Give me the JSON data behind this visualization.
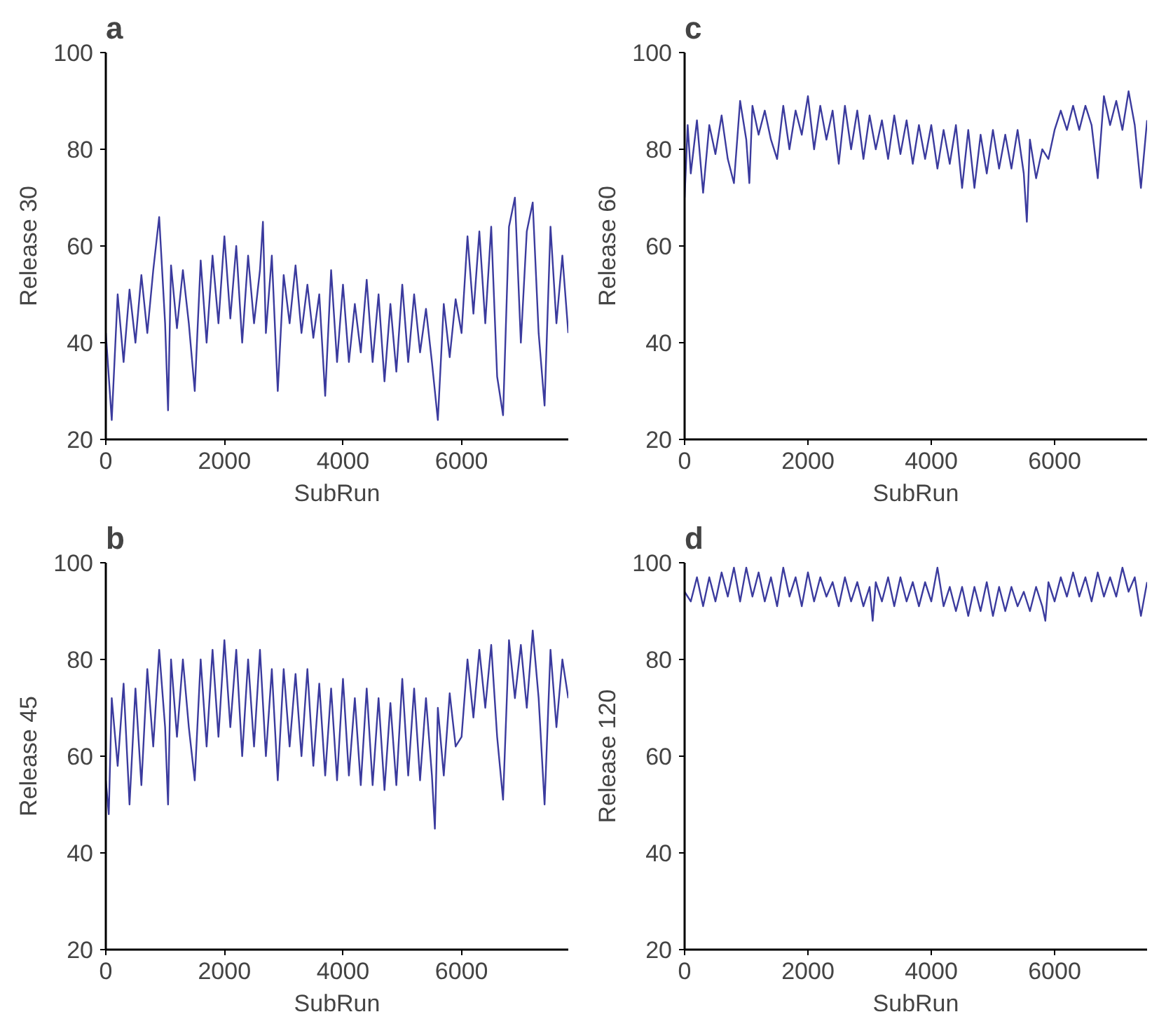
{
  "chart_data": [
    {
      "type": "line",
      "title": "a",
      "xlabel": "SubRun",
      "ylabel": "Release 30",
      "xlim": [
        0,
        7800
      ],
      "ylim": [
        20,
        100
      ],
      "xticks": [
        0,
        2000,
        4000,
        6000
      ],
      "yticks": [
        20,
        40,
        60,
        80,
        100
      ],
      "grid": false,
      "series": [
        {
          "color": "#3b3b9e",
          "x": [
            0,
            100,
            200,
            300,
            400,
            500,
            600,
            700,
            800,
            900,
            1000,
            1050,
            1100,
            1200,
            1300,
            1400,
            1500,
            1600,
            1700,
            1800,
            1900,
            2000,
            2100,
            2200,
            2300,
            2400,
            2500,
            2600,
            2650,
            2700,
            2800,
            2900,
            3000,
            3100,
            3200,
            3300,
            3400,
            3500,
            3600,
            3700,
            3800,
            3900,
            4000,
            4100,
            4200,
            4300,
            4400,
            4500,
            4600,
            4700,
            4800,
            4900,
            5000,
            5100,
            5200,
            5300,
            5400,
            5500,
            5600,
            5700,
            5800,
            5900,
            6000,
            6100,
            6200,
            6300,
            6400,
            6500,
            6600,
            6700,
            6800,
            6900,
            7000,
            7100,
            7200,
            7300,
            7400,
            7500,
            7600,
            7700,
            7800
          ],
          "values": [
            42,
            24,
            50,
            36,
            51,
            40,
            54,
            42,
            55,
            66,
            44,
            26,
            56,
            43,
            55,
            44,
            30,
            57,
            40,
            58,
            44,
            62,
            45,
            60,
            40,
            58,
            44,
            55,
            65,
            42,
            58,
            30,
            54,
            44,
            56,
            42,
            52,
            41,
            50,
            29,
            55,
            36,
            52,
            36,
            48,
            38,
            53,
            36,
            50,
            32,
            48,
            34,
            52,
            36,
            50,
            38,
            47,
            36,
            24,
            48,
            37,
            49,
            42,
            62,
            46,
            63,
            44,
            64,
            33,
            25,
            64,
            70,
            40,
            63,
            69,
            42,
            27,
            64,
            44,
            58,
            42
          ]
        }
      ]
    },
    {
      "type": "line",
      "title": "c",
      "xlabel": "SubRun",
      "ylabel": "Release 60",
      "xlim": [
        0,
        7500
      ],
      "ylim": [
        20,
        100
      ],
      "xticks": [
        0,
        2000,
        4000,
        6000
      ],
      "yticks": [
        20,
        40,
        60,
        80,
        100
      ],
      "grid": false,
      "series": [
        {
          "color": "#3b3b9e",
          "x": [
            0,
            50,
            100,
            200,
            300,
            400,
            500,
            600,
            700,
            800,
            900,
            1000,
            1050,
            1100,
            1200,
            1300,
            1400,
            1500,
            1600,
            1700,
            1800,
            1900,
            2000,
            2100,
            2200,
            2300,
            2400,
            2500,
            2600,
            2700,
            2800,
            2900,
            3000,
            3100,
            3200,
            3300,
            3400,
            3500,
            3600,
            3700,
            3800,
            3900,
            4000,
            4100,
            4200,
            4300,
            4400,
            4500,
            4600,
            4700,
            4800,
            4900,
            5000,
            5100,
            5200,
            5300,
            5400,
            5500,
            5550,
            5600,
            5700,
            5800,
            5900,
            6000,
            6100,
            6200,
            6300,
            6400,
            6500,
            6600,
            6700,
            6800,
            6900,
            7000,
            7100,
            7200,
            7300,
            7400,
            7500
          ],
          "values": [
            70,
            85,
            75,
            86,
            71,
            85,
            79,
            87,
            78,
            73,
            90,
            82,
            73,
            89,
            83,
            88,
            82,
            78,
            89,
            80,
            88,
            83,
            91,
            80,
            89,
            82,
            88,
            77,
            89,
            80,
            88,
            78,
            87,
            80,
            86,
            78,
            87,
            79,
            86,
            77,
            85,
            78,
            85,
            76,
            84,
            77,
            85,
            72,
            84,
            72,
            83,
            75,
            84,
            76,
            83,
            76,
            84,
            75,
            65,
            82,
            74,
            80,
            78,
            84,
            88,
            84,
            89,
            84,
            89,
            85,
            74,
            91,
            85,
            90,
            84,
            92,
            85,
            72,
            86
          ]
        }
      ]
    },
    {
      "type": "line",
      "title": "b",
      "xlabel": "SubRun",
      "ylabel": "Release 45",
      "xlim": [
        0,
        7800
      ],
      "ylim": [
        20,
        100
      ],
      "xticks": [
        0,
        2000,
        4000,
        6000
      ],
      "yticks": [
        20,
        40,
        60,
        80,
        100
      ],
      "grid": false,
      "series": [
        {
          "color": "#3b3b9e",
          "x": [
            0,
            50,
            100,
            200,
            300,
            400,
            500,
            600,
            700,
            800,
            900,
            1000,
            1050,
            1100,
            1200,
            1300,
            1400,
            1500,
            1600,
            1700,
            1800,
            1900,
            2000,
            2100,
            2200,
            2300,
            2400,
            2500,
            2600,
            2700,
            2800,
            2900,
            3000,
            3100,
            3200,
            3300,
            3400,
            3500,
            3600,
            3700,
            3800,
            3900,
            4000,
            4100,
            4200,
            4300,
            4400,
            4500,
            4600,
            4700,
            4800,
            4900,
            5000,
            5100,
            5200,
            5300,
            5400,
            5500,
            5550,
            5600,
            5700,
            5800,
            5900,
            6000,
            6100,
            6200,
            6300,
            6400,
            6500,
            6600,
            6700,
            6800,
            6900,
            7000,
            7100,
            7200,
            7300,
            7400,
            7500,
            7600,
            7700,
            7800
          ],
          "values": [
            55,
            48,
            72,
            58,
            75,
            50,
            74,
            54,
            78,
            62,
            82,
            66,
            50,
            80,
            64,
            80,
            66,
            55,
            80,
            62,
            82,
            64,
            84,
            66,
            82,
            60,
            80,
            62,
            82,
            60,
            78,
            55,
            78,
            62,
            77,
            60,
            78,
            58,
            75,
            56,
            74,
            55,
            76,
            56,
            72,
            54,
            74,
            54,
            72,
            53,
            71,
            54,
            76,
            56,
            74,
            55,
            72,
            56,
            45,
            70,
            56,
            73,
            62,
            64,
            80,
            68,
            82,
            70,
            83,
            64,
            51,
            84,
            72,
            83,
            70,
            86,
            72,
            50,
            82,
            66,
            80,
            72
          ]
        }
      ]
    },
    {
      "type": "line",
      "title": "d",
      "xlabel": "SubRun",
      "ylabel": "Release 120",
      "xlim": [
        0,
        7500
      ],
      "ylim": [
        20,
        100
      ],
      "xticks": [
        0,
        2000,
        4000,
        6000
      ],
      "yticks": [
        20,
        40,
        60,
        80,
        100
      ],
      "grid": false,
      "series": [
        {
          "color": "#3b3b9e",
          "x": [
            0,
            100,
            200,
            300,
            400,
            500,
            600,
            700,
            800,
            900,
            1000,
            1100,
            1200,
            1300,
            1400,
            1500,
            1600,
            1700,
            1800,
            1900,
            2000,
            2100,
            2200,
            2300,
            2400,
            2500,
            2600,
            2700,
            2800,
            2900,
            3000,
            3050,
            3100,
            3200,
            3300,
            3400,
            3500,
            3600,
            3700,
            3800,
            3900,
            4000,
            4100,
            4200,
            4300,
            4400,
            4500,
            4600,
            4700,
            4800,
            4900,
            5000,
            5100,
            5200,
            5300,
            5400,
            5500,
            5600,
            5700,
            5800,
            5850,
            5900,
            6000,
            6100,
            6200,
            6300,
            6400,
            6500,
            6600,
            6700,
            6800,
            6900,
            7000,
            7100,
            7200,
            7300,
            7400,
            7500
          ],
          "values": [
            94,
            92,
            97,
            91,
            97,
            92,
            98,
            93,
            99,
            92,
            99,
            93,
            98,
            92,
            97,
            91,
            99,
            93,
            97,
            91,
            98,
            92,
            97,
            93,
            96,
            91,
            97,
            92,
            96,
            91,
            95,
            88,
            96,
            92,
            97,
            91,
            97,
            92,
            96,
            91,
            96,
            92,
            99,
            91,
            95,
            90,
            95,
            89,
            95,
            90,
            96,
            89,
            95,
            90,
            95,
            91,
            94,
            90,
            95,
            91,
            88,
            96,
            92,
            97,
            93,
            98,
            93,
            97,
            92,
            98,
            93,
            97,
            93,
            99,
            94,
            97,
            89,
            96
          ]
        }
      ]
    }
  ]
}
